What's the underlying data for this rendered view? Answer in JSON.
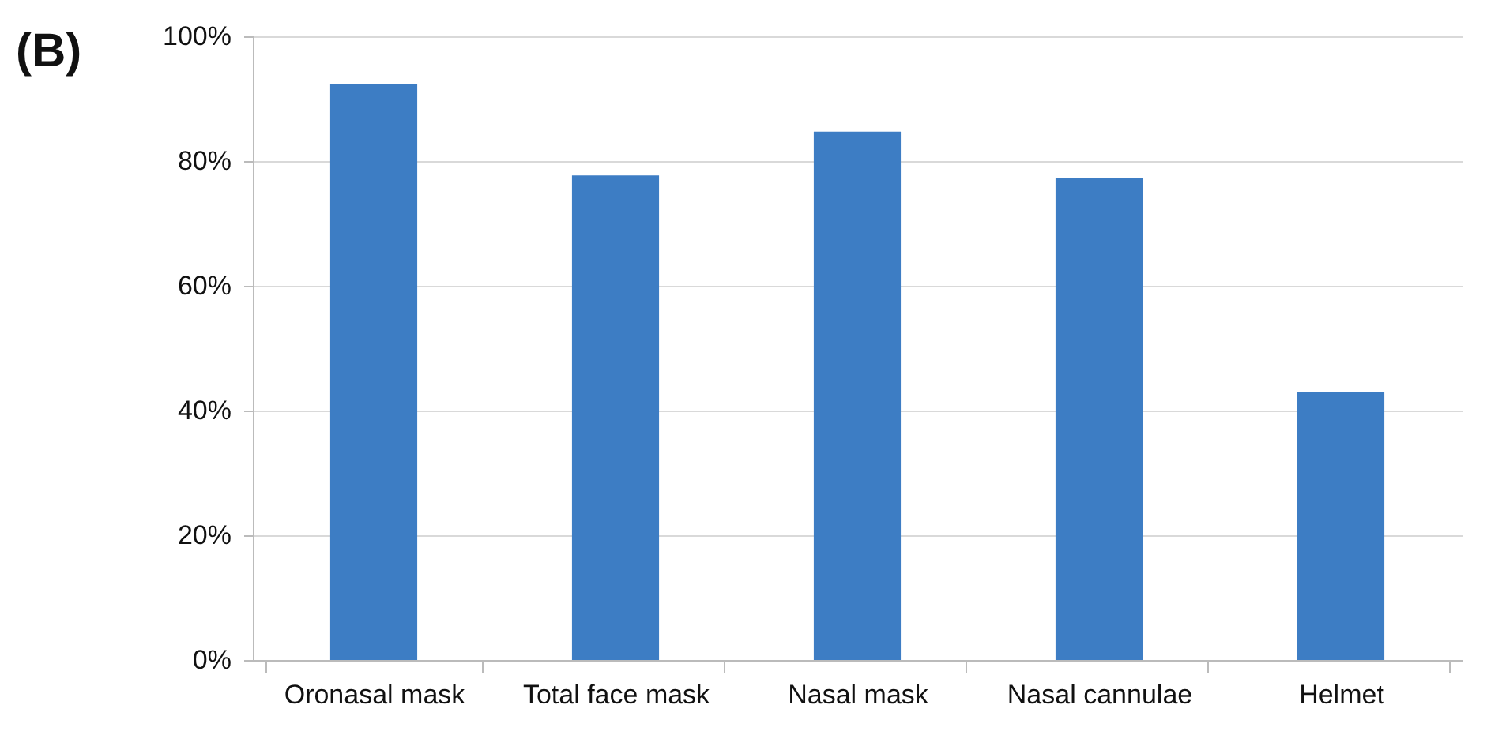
{
  "chart_data": {
    "type": "bar",
    "title": "(B)",
    "categories": [
      "Oronasal mask",
      "Total face mask",
      "Nasal mask",
      "Nasal cannulae",
      "Helmet"
    ],
    "values": [
      92.4,
      77.7,
      84.7,
      77.3,
      42.9
    ],
    "color": "#3d7dc4",
    "ylim": [
      0,
      100
    ],
    "yticks": [
      {
        "value": 0,
        "label": "0%"
      },
      {
        "value": 20,
        "label": "20%"
      },
      {
        "value": 40,
        "label": "40%"
      },
      {
        "value": 60,
        "label": "60%"
      },
      {
        "value": 80,
        "label": "80%"
      },
      {
        "value": 100,
        "label": "100%"
      }
    ],
    "grid": "y"
  }
}
